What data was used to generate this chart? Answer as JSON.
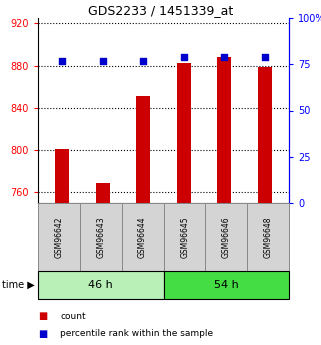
{
  "title": "GDS2233 / 1451339_at",
  "categories": [
    "GSM96642",
    "GSM96643",
    "GSM96644",
    "GSM96645",
    "GSM96646",
    "GSM96648"
  ],
  "count_values": [
    801,
    769,
    851,
    882,
    888,
    879
  ],
  "percentile_values": [
    77,
    77,
    77,
    79,
    79,
    79
  ],
  "ylim_left": [
    750,
    925
  ],
  "ylim_right": [
    0,
    100
  ],
  "yticks_left": [
    760,
    800,
    840,
    880,
    920
  ],
  "yticks_right": [
    0,
    25,
    50,
    75,
    100
  ],
  "ytick_labels_right": [
    "0",
    "25",
    "50",
    "75",
    "100%"
  ],
  "bar_color": "#cc0000",
  "dot_color": "#0000cc",
  "group1_label": "46 h",
  "group2_label": "54 h",
  "color_46h": "#b8f0b8",
  "color_54h": "#44dd44",
  "bar_width": 0.35,
  "base_value": 750,
  "legend_count_color": "#cc0000",
  "legend_pct_color": "#0000cc"
}
